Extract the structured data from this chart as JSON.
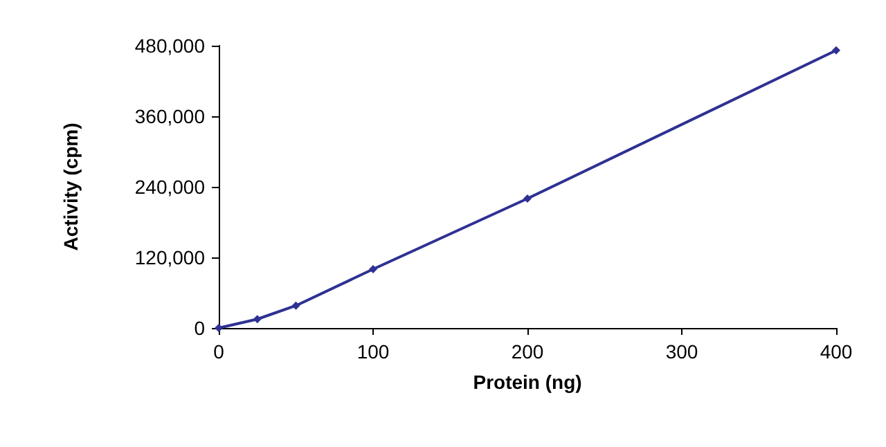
{
  "chart_data": {
    "type": "line",
    "xlabel": "Protein (ng)",
    "ylabel": "Activity (cpm)",
    "x": [
      0,
      25,
      50,
      100,
      200,
      400
    ],
    "series": [
      {
        "color": "#2e3192",
        "values": [
          0,
          15000,
          38000,
          100000,
          220000,
          472000
        ]
      }
    ],
    "xlim": [
      0,
      400
    ],
    "xticks": [
      0,
      100,
      200,
      300,
      400
    ],
    "ylim": [
      0,
      480000
    ],
    "yticks": [
      0,
      {
        "value": 120000,
        "label": "120,000"
      },
      {
        "value": 240000,
        "label": "240,000"
      },
      {
        "value": 360000,
        "label": "360,000"
      },
      {
        "value": 480000,
        "label": "480,000"
      }
    ],
    "grid": false,
    "marker": "diamond",
    "line_style": "solid"
  }
}
